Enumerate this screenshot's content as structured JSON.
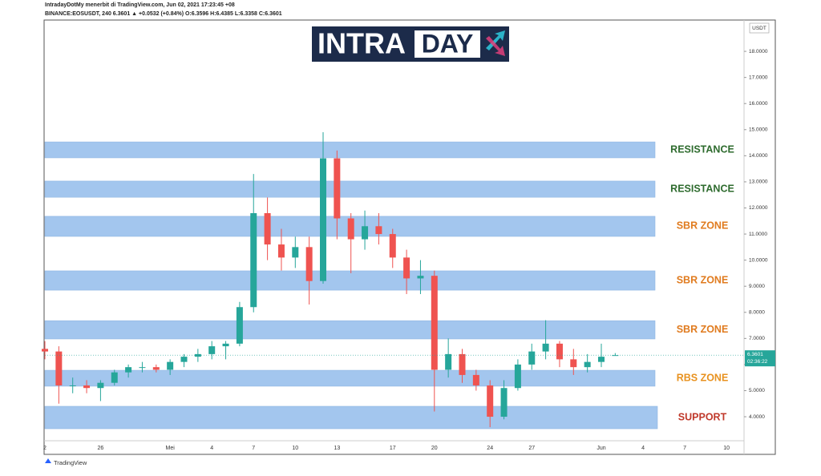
{
  "header": {
    "publisher": "IntradayDotMy menerbit di TradingView.com, Jun 02, 2021 17:23:45 +08",
    "symbol_line": "BINANCE:EOSUSDT, 240  6.3601  ▲ +0.0532 (+0.84%) O:6.3596 H:6.4385 L:6.3358 C:6.3601"
  },
  "logo": {
    "left": "INTRA",
    "right": "DAY"
  },
  "footer": "TradingView",
  "chart_data": {
    "type": "candlestick",
    "currency": "USDT",
    "categories": [
      "2",
      null,
      null,
      null,
      "26",
      null,
      null,
      null,
      null,
      "Mei",
      null,
      null,
      "4",
      null,
      null,
      "7",
      null,
      null,
      "10",
      null,
      null,
      "13",
      null,
      null,
      null,
      "17",
      null,
      null,
      "20",
      null,
      null,
      null,
      "24",
      null,
      null,
      "27",
      null,
      null,
      null,
      null,
      "Jun",
      null,
      null,
      "4",
      null,
      null,
      "7",
      null,
      null,
      "10",
      null
    ],
    "open": [
      6.6,
      6.5,
      5.2,
      5.2,
      5.1,
      5.3,
      5.7,
      5.9,
      5.9,
      5.8,
      6.1,
      6.3,
      6.4,
      6.7,
      6.8,
      8.2,
      11.8,
      10.6,
      10.1,
      10.5,
      9.2,
      13.9,
      11.6,
      10.8,
      11.3,
      11.0,
      10.1,
      9.3,
      9.4,
      5.8,
      6.4,
      5.6,
      5.2,
      4.0,
      5.1,
      6.0,
      6.5,
      6.8,
      6.2,
      5.9,
      6.1,
      6.3596,
      null,
      null,
      null,
      null,
      null,
      null,
      null,
      null,
      null
    ],
    "high": [
      6.9,
      6.7,
      5.5,
      5.4,
      5.4,
      5.8,
      6.0,
      6.1,
      6.0,
      6.2,
      6.4,
      6.6,
      6.9,
      6.9,
      8.4,
      13.3,
      12.4,
      11.2,
      10.9,
      10.9,
      14.9,
      14.2,
      11.8,
      11.9,
      11.8,
      11.2,
      10.4,
      10.0,
      9.6,
      7.0,
      6.6,
      5.8,
      5.4,
      5.4,
      6.2,
      6.8,
      7.7,
      6.9,
      6.6,
      6.4,
      6.8,
      6.4385,
      null,
      null,
      null,
      null,
      null,
      null,
      null,
      null,
      null
    ],
    "low": [
      6.2,
      4.5,
      4.9,
      4.9,
      4.6,
      5.2,
      5.5,
      5.7,
      5.7,
      5.6,
      5.9,
      6.1,
      6.2,
      6.2,
      6.7,
      8.0,
      10.0,
      9.6,
      9.7,
      8.3,
      9.1,
      10.8,
      9.5,
      10.4,
      10.6,
      9.7,
      8.7,
      8.7,
      4.2,
      5.5,
      5.3,
      5.0,
      3.6,
      3.9,
      5.0,
      5.8,
      6.2,
      5.9,
      5.6,
      5.7,
      5.9,
      6.3358,
      null,
      null,
      null,
      null,
      null,
      null,
      null,
      null,
      null
    ],
    "close": [
      6.5,
      5.2,
      5.2,
      5.1,
      5.3,
      5.7,
      5.9,
      5.9,
      5.8,
      6.1,
      6.3,
      6.4,
      6.7,
      6.8,
      8.2,
      11.8,
      10.6,
      10.1,
      10.5,
      9.2,
      13.9,
      11.6,
      10.8,
      11.3,
      11.0,
      10.1,
      9.3,
      9.4,
      5.8,
      6.4,
      5.6,
      5.2,
      4.0,
      5.1,
      6.0,
      6.5,
      6.8,
      6.2,
      5.9,
      6.1,
      6.3,
      6.3601,
      null,
      null,
      null,
      null,
      null,
      null,
      null,
      null,
      null
    ],
    "up_color": "#26a69a",
    "down_color": "#ef5350",
    "last_price": 6.3601,
    "countdown": "02:36:22",
    "ylim": [
      3.08,
      19.2
    ],
    "yticks": [
      {
        "value": 4,
        "label": "4.0000"
      },
      {
        "value": 5,
        "label": "5.0000"
      },
      {
        "value": 6,
        "label": "6.0000"
      },
      {
        "value": 7,
        "label": "7.0000"
      },
      {
        "value": 8,
        "label": "8.0000"
      },
      {
        "value": 9,
        "label": "9.0000"
      },
      {
        "value": 10,
        "label": "10.0000"
      },
      {
        "value": 11,
        "label": "11.0000"
      },
      {
        "value": 12,
        "label": "12.0000"
      },
      {
        "value": 13,
        "label": "13.0000"
      },
      {
        "value": 14,
        "label": "14.0000"
      },
      {
        "value": 15,
        "label": "15.0000"
      },
      {
        "value": 16,
        "label": "16.0000"
      },
      {
        "value": 17,
        "label": "17.0000"
      },
      {
        "value": 18,
        "label": "18.0000"
      }
    ],
    "zones": [
      {
        "label": "RESISTANCE",
        "low": 13.92,
        "high": 14.53,
        "color": "#2e6b2e"
      },
      {
        "label": "RESISTANCE",
        "low": 12.41,
        "high": 13.03,
        "color": "#2e6b2e"
      },
      {
        "label": "SBR ZONE",
        "low": 10.91,
        "high": 11.68,
        "color": "#e07b1f"
      },
      {
        "label": "SBR ZONE",
        "low": 8.85,
        "high": 9.59,
        "color": "#e07b1f"
      },
      {
        "label": "SBR ZONE",
        "low": 6.98,
        "high": 7.68,
        "color": "#e07b1f"
      },
      {
        "label": "RBS ZONE",
        "low": 5.17,
        "high": 5.78,
        "color": "#e8921f"
      },
      {
        "label": "SUPPORT",
        "low": 3.54,
        "high": 4.4,
        "color": "#c0392b"
      }
    ],
    "zone_fill": "#a3c6ee"
  }
}
